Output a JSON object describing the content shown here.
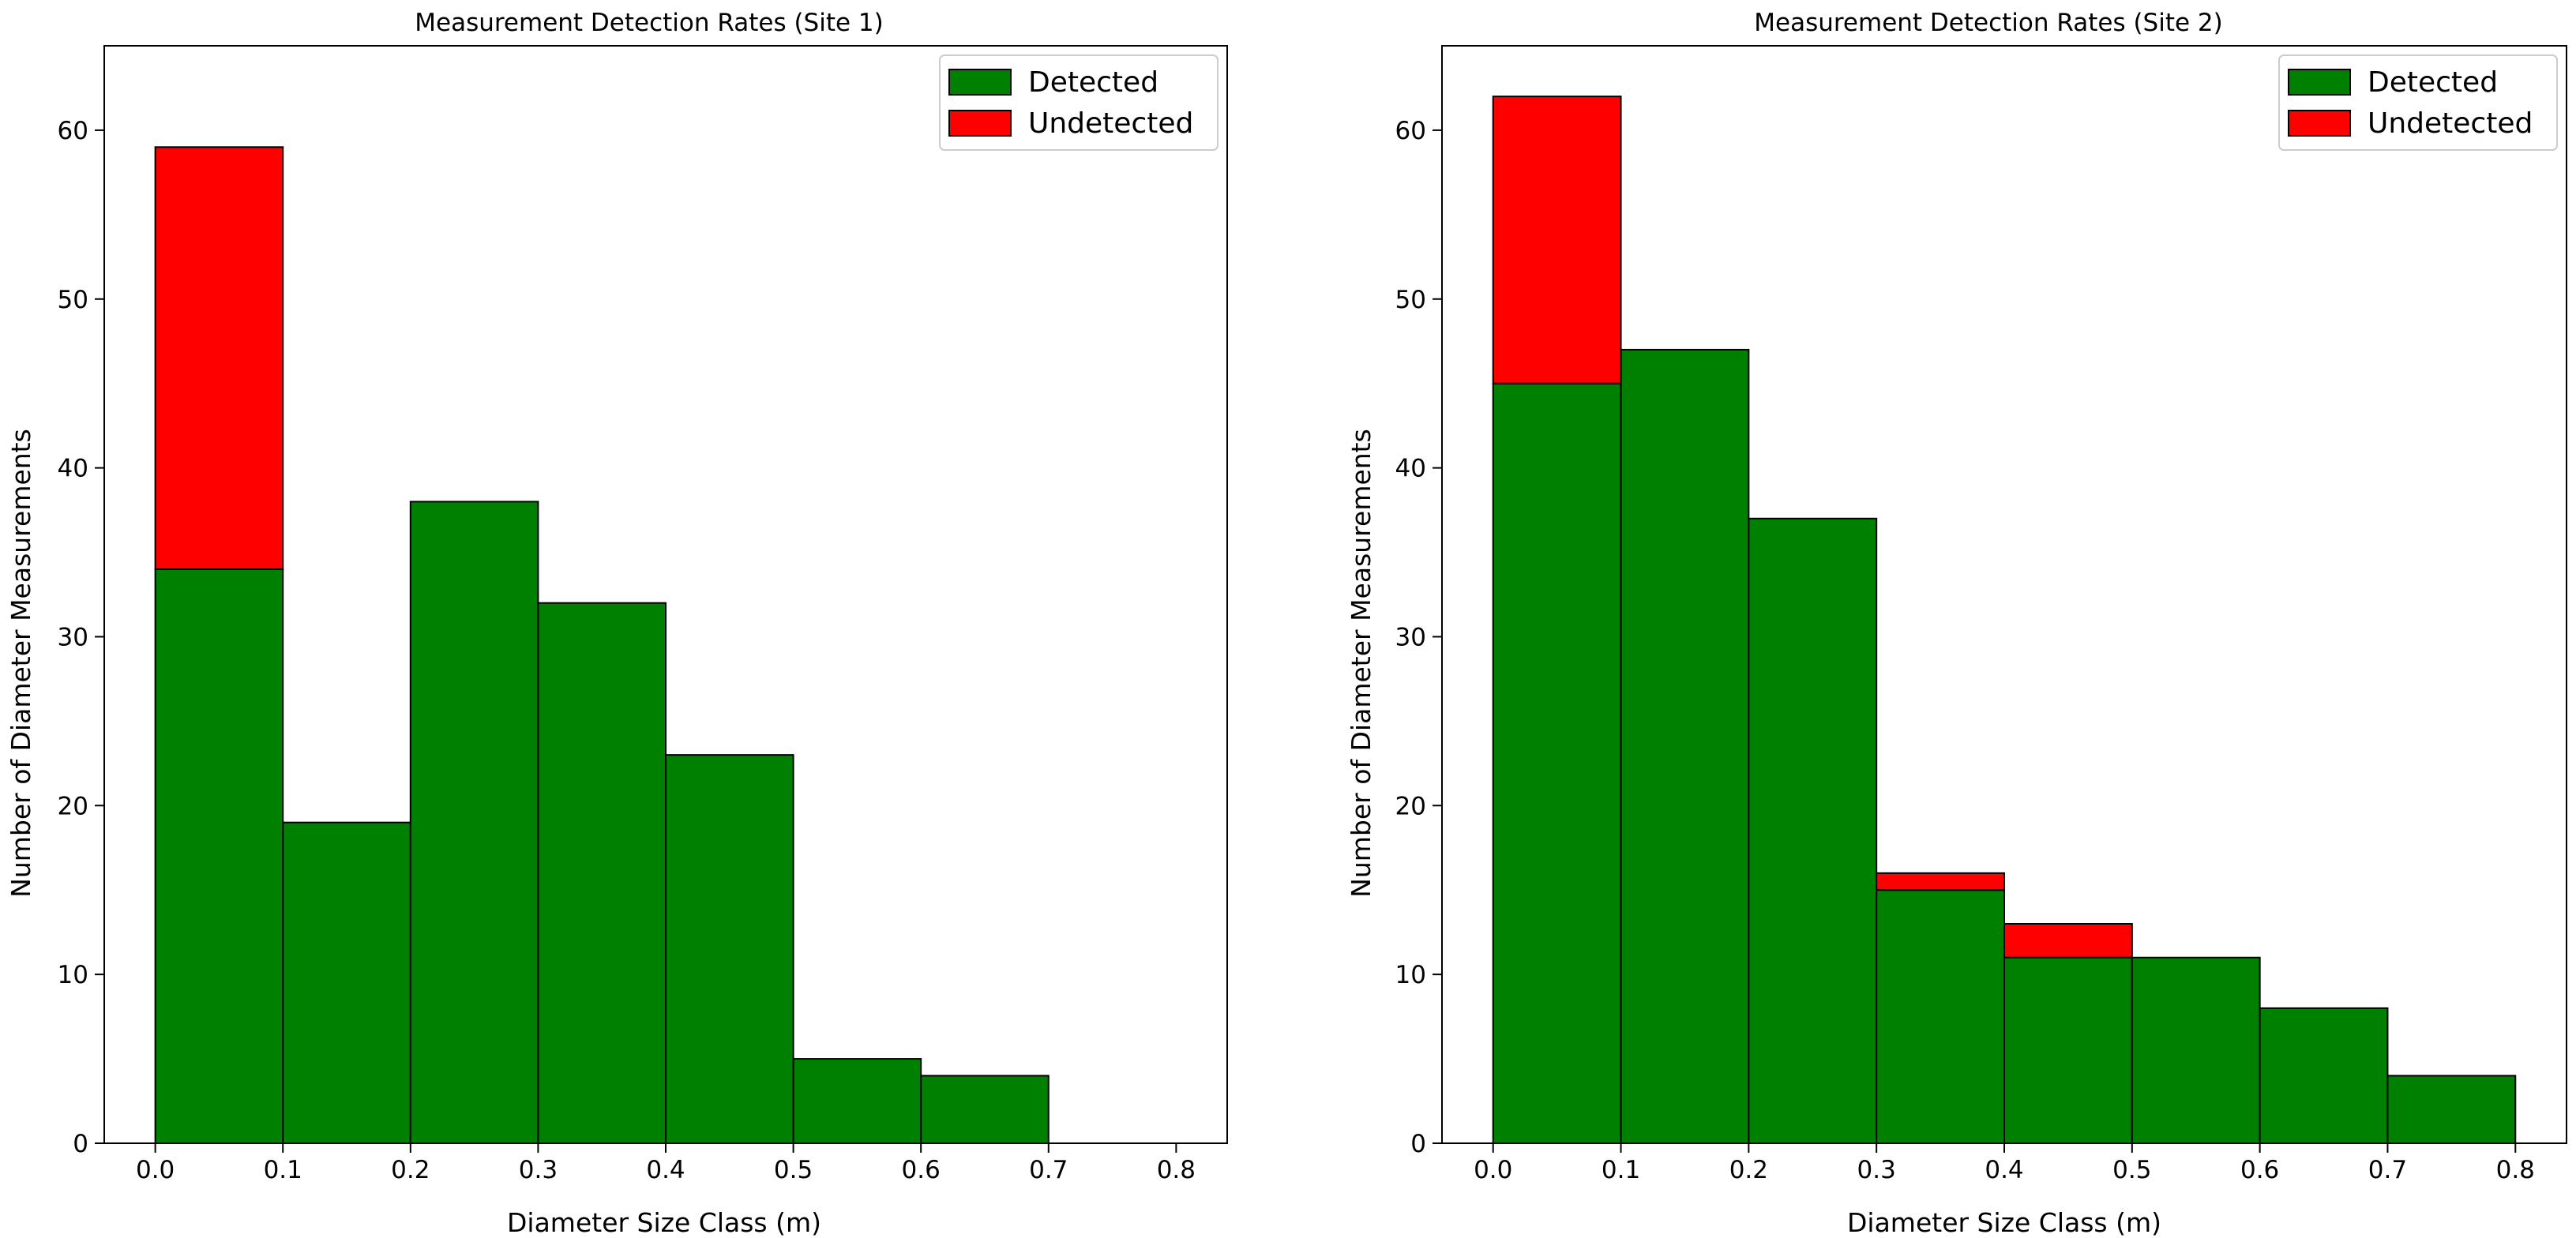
{
  "chart_data": [
    {
      "type": "bar",
      "stacked": true,
      "title": "Measurement Detection Rates (Site 1)",
      "xlabel": "Diameter Size Class (m)",
      "ylabel": "Number of Diameter Measurements",
      "xlim": [
        -0.04,
        0.84
      ],
      "ylim": [
        0,
        65
      ],
      "xticks": [
        "0.0",
        "0.1",
        "0.2",
        "0.3",
        "0.4",
        "0.5",
        "0.6",
        "0.7",
        "0.8"
      ],
      "yticks": [
        "0",
        "10",
        "20",
        "30",
        "40",
        "50",
        "60"
      ],
      "bin_edges": [
        0.0,
        0.1,
        0.2,
        0.3,
        0.4,
        0.5,
        0.6,
        0.7,
        0.8
      ],
      "legend_position": "upper right",
      "series": [
        {
          "name": "Detected",
          "color": "#008000",
          "values": [
            34,
            19,
            38,
            32,
            23,
            5,
            4,
            0
          ]
        },
        {
          "name": "Undetected",
          "color": "#ff0000",
          "values": [
            25,
            0,
            0,
            0,
            0,
            0,
            0,
            0
          ]
        }
      ]
    },
    {
      "type": "bar",
      "stacked": true,
      "title": "Measurement Detection Rates (Site 2)",
      "xlabel": "Diameter Size Class (m)",
      "ylabel": "Number of Diameter Measurements",
      "xlim": [
        -0.04,
        0.84
      ],
      "ylim": [
        0,
        65
      ],
      "xticks": [
        "0.0",
        "0.1",
        "0.2",
        "0.3",
        "0.4",
        "0.5",
        "0.6",
        "0.7",
        "0.8"
      ],
      "yticks": [
        "0",
        "10",
        "20",
        "30",
        "40",
        "50",
        "60"
      ],
      "bin_edges": [
        0.0,
        0.1,
        0.2,
        0.3,
        0.4,
        0.5,
        0.6,
        0.7,
        0.8
      ],
      "legend_position": "upper right",
      "series": [
        {
          "name": "Detected",
          "color": "#008000",
          "values": [
            45,
            47,
            37,
            15,
            11,
            11,
            8,
            4
          ]
        },
        {
          "name": "Undetected",
          "color": "#ff0000",
          "values": [
            17,
            0,
            0,
            1,
            2,
            0,
            0,
            0
          ]
        }
      ]
    }
  ]
}
